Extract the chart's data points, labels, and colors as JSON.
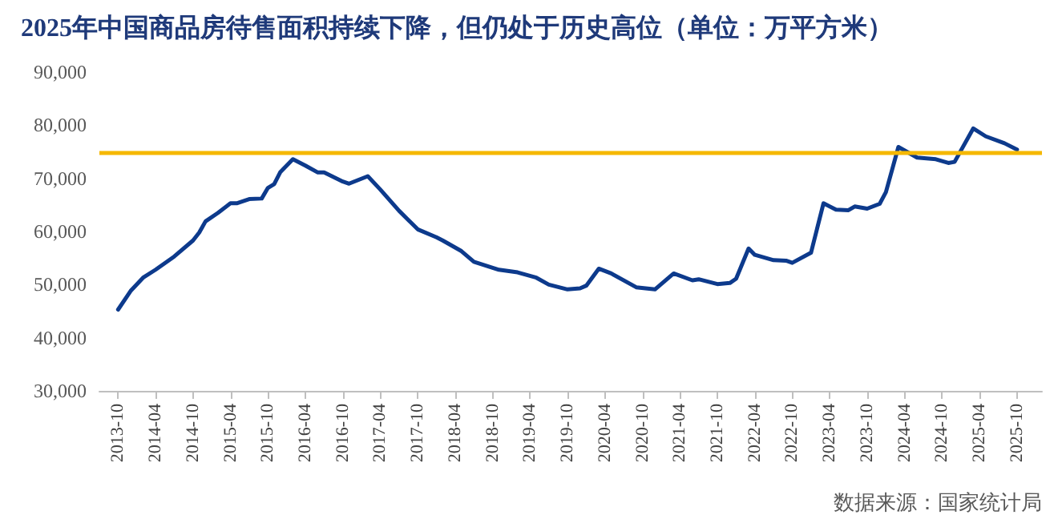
{
  "chart_data": {
    "type": "line",
    "title": "2025年中国商品房待售面积持续下降，但仍处于历史高位（单位：万平方米）",
    "x": [
      "2013-10",
      "2013-12",
      "2014-02",
      "2014-04",
      "2014-07",
      "2014-10",
      "2014-11",
      "2014-12",
      "2015-02",
      "2015-04",
      "2015-05",
      "2015-07",
      "2015-09",
      "2015-10",
      "2015-11",
      "2015-12",
      "2016-02",
      "2016-04",
      "2016-06",
      "2016-07",
      "2016-10",
      "2016-11",
      "2017-02",
      "2017-04",
      "2017-07",
      "2017-10",
      "2018-01",
      "2018-02",
      "2018-05",
      "2018-07",
      "2018-11",
      "2019-02",
      "2019-05",
      "2019-07",
      "2019-10",
      "2019-12",
      "2020-01",
      "2020-03",
      "2020-05",
      "2020-09",
      "2020-12",
      "2021-03",
      "2021-06",
      "2021-07",
      "2021-10",
      "2021-12",
      "2022-01",
      "2022-03",
      "2022-04",
      "2022-07",
      "2022-09",
      "2022-10",
      "2023-01",
      "2023-03",
      "2023-05",
      "2023-07",
      "2023-08",
      "2023-10",
      "2023-12",
      "2024-01",
      "2024-03",
      "2024-06",
      "2024-09",
      "2024-11",
      "2024-12",
      "2025-03",
      "2025-05",
      "2025-08",
      "2025-10"
    ],
    "series": [
      {
        "color": "#0d3a8c",
        "values": [
          45300,
          48800,
          51300,
          52800,
          55300,
          58300,
          59800,
          61900,
          63500,
          65300,
          65300,
          66100,
          66200,
          68200,
          68900,
          71200,
          73600,
          72400,
          71100,
          71100,
          69400,
          69000,
          70400,
          67900,
          63900,
          60400,
          58900,
          58300,
          56300,
          54300,
          52800,
          52300,
          51300,
          50000,
          49100,
          49300,
          49800,
          53000,
          52100,
          49500,
          49100,
          52100,
          50800,
          51000,
          50100,
          50300,
          51100,
          56800,
          55600,
          54600,
          54500,
          54100,
          56000,
          65300,
          64100,
          64000,
          64700,
          64300,
          65200,
          67400,
          75900,
          73900,
          73600,
          72900,
          73100,
          79400,
          77900,
          76600,
          75400
        ]
      }
    ],
    "xlim": [
      "2013-07",
      "2026-02"
    ],
    "xticks": [
      "2013-10",
      "2014-04",
      "2014-10",
      "2015-04",
      "2015-10",
      "2016-04",
      "2016-10",
      "2017-04",
      "2017-10",
      "2018-04",
      "2018-10",
      "2019-04",
      "2019-10",
      "2020-04",
      "2020-10",
      "2021-04",
      "2021-10",
      "2022-04",
      "2022-10",
      "2023-04",
      "2023-10",
      "2024-04",
      "2024-10",
      "2025-04",
      "2025-10"
    ],
    "ylim": [
      30000,
      90000
    ],
    "yticks": [
      {
        "value": 30000,
        "label": "30,000"
      },
      {
        "value": 40000,
        "label": "40,000"
      },
      {
        "value": 50000,
        "label": "50,000"
      },
      {
        "value": 60000,
        "label": "60,000"
      },
      {
        "value": 70000,
        "label": "70,000"
      },
      {
        "value": 80000,
        "label": "80,000"
      },
      {
        "value": 90000,
        "label": "90,000"
      }
    ],
    "ref_lines": [
      {
        "axis": "y",
        "value": 75000,
        "color": "#f5b800",
        "line_style": "solid"
      }
    ],
    "grid": false,
    "marker": "none",
    "line_style": "solid",
    "annotations": [
      "数据来源：国家统计局"
    ]
  }
}
